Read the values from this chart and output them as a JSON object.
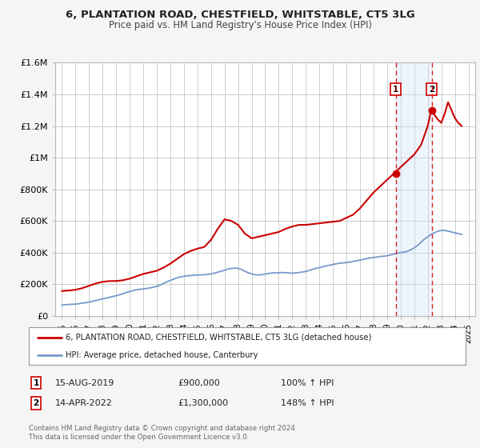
{
  "title": "6, PLANTATION ROAD, CHESTFIELD, WHITSTABLE, CT5 3LG",
  "subtitle": "Price paid vs. HM Land Registry's House Price Index (HPI)",
  "ylim": [
    0,
    1600000
  ],
  "xlim": [
    1994.5,
    2025.5
  ],
  "yticks": [
    0,
    200000,
    400000,
    600000,
    800000,
    1000000,
    1200000,
    1400000,
    1600000
  ],
  "ytick_labels": [
    "£0",
    "£200K",
    "£400K",
    "£600K",
    "£800K",
    "£1M",
    "£1.2M",
    "£1.4M",
    "£1.6M"
  ],
  "xticks": [
    1995,
    1996,
    1997,
    1998,
    1999,
    2000,
    2001,
    2002,
    2003,
    2004,
    2005,
    2006,
    2007,
    2008,
    2009,
    2010,
    2011,
    2012,
    2013,
    2014,
    2015,
    2016,
    2017,
    2018,
    2019,
    2020,
    2021,
    2022,
    2023,
    2024,
    2025
  ],
  "bg_color": "#f5f5f5",
  "plot_bg_color": "#ffffff",
  "grid_color": "#cccccc",
  "red_line_color": "#cc0000",
  "blue_line_color": "#7799cc",
  "shaded_region_color": "#cce0f5",
  "dashed_line_color": "#dd2222",
  "marker1_x": 2019.625,
  "marker1_y": 900000,
  "marker2_x": 2022.292,
  "marker2_y": 1300000,
  "vline1_x": 2019.625,
  "vline2_x": 2022.292,
  "legend_line1": "6, PLANTATION ROAD, CHESTFIELD, WHITSTABLE, CT5 3LG (detached house)",
  "legend_line2": "HPI: Average price, detached house, Canterbury",
  "annotation1_num": "1",
  "annotation1_date": "15-AUG-2019",
  "annotation1_price": "£900,000",
  "annotation1_hpi": "100% ↑ HPI",
  "annotation2_num": "2",
  "annotation2_date": "14-APR-2022",
  "annotation2_price": "£1,300,000",
  "annotation2_hpi": "148% ↑ HPI",
  "footer1": "Contains HM Land Registry data © Crown copyright and database right 2024.",
  "footer2": "This data is licensed under the Open Government Licence v3.0.",
  "hpi_x": [
    1995.0,
    1995.25,
    1995.5,
    1995.75,
    1996.0,
    1996.25,
    1996.5,
    1996.75,
    1997.0,
    1997.25,
    1997.5,
    1997.75,
    1998.0,
    1998.25,
    1998.5,
    1998.75,
    1999.0,
    1999.25,
    1999.5,
    1999.75,
    2000.0,
    2000.25,
    2000.5,
    2000.75,
    2001.0,
    2001.25,
    2001.5,
    2001.75,
    2002.0,
    2002.25,
    2002.5,
    2002.75,
    2003.0,
    2003.25,
    2003.5,
    2003.75,
    2004.0,
    2004.25,
    2004.5,
    2004.75,
    2005.0,
    2005.25,
    2005.5,
    2005.75,
    2006.0,
    2006.25,
    2006.5,
    2006.75,
    2007.0,
    2007.25,
    2007.5,
    2007.75,
    2008.0,
    2008.25,
    2008.5,
    2008.75,
    2009.0,
    2009.25,
    2009.5,
    2009.75,
    2010.0,
    2010.25,
    2010.5,
    2010.75,
    2011.0,
    2011.25,
    2011.5,
    2011.75,
    2012.0,
    2012.25,
    2012.5,
    2012.75,
    2013.0,
    2013.25,
    2013.5,
    2013.75,
    2014.0,
    2014.25,
    2014.5,
    2014.75,
    2015.0,
    2015.25,
    2015.5,
    2015.75,
    2016.0,
    2016.25,
    2016.5,
    2016.75,
    2017.0,
    2017.25,
    2017.5,
    2017.75,
    2018.0,
    2018.25,
    2018.5,
    2018.75,
    2019.0,
    2019.25,
    2019.5,
    2019.75,
    2020.0,
    2020.25,
    2020.5,
    2020.75,
    2021.0,
    2021.25,
    2021.5,
    2021.75,
    2022.0,
    2022.25,
    2022.5,
    2022.75,
    2023.0,
    2023.25,
    2023.5,
    2023.75,
    2024.0,
    2024.25,
    2024.5
  ],
  "hpi_y": [
    68000,
    70000,
    72000,
    73000,
    74000,
    77000,
    80000,
    83000,
    87000,
    92000,
    97000,
    102000,
    107000,
    112000,
    117000,
    122000,
    127000,
    133000,
    140000,
    147000,
    154000,
    160000,
    165000,
    168000,
    170000,
    173000,
    177000,
    181000,
    186000,
    195000,
    205000,
    215000,
    224000,
    232000,
    240000,
    246000,
    250000,
    253000,
    255000,
    257000,
    258000,
    259000,
    260000,
    262000,
    265000,
    270000,
    276000,
    282000,
    288000,
    295000,
    300000,
    302000,
    300000,
    293000,
    282000,
    272000,
    265000,
    260000,
    258000,
    260000,
    264000,
    268000,
    271000,
    272000,
    272000,
    274000,
    273000,
    271000,
    270000,
    271000,
    274000,
    277000,
    281000,
    287000,
    294000,
    300000,
    305000,
    310000,
    316000,
    320000,
    325000,
    329000,
    333000,
    335000,
    337000,
    340000,
    344000,
    348000,
    352000,
    357000,
    362000,
    366000,
    369000,
    372000,
    375000,
    377000,
    380000,
    385000,
    390000,
    395000,
    400000,
    403000,
    408000,
    418000,
    430000,
    445000,
    465000,
    485000,
    500000,
    515000,
    525000,
    535000,
    540000,
    540000,
    535000,
    530000,
    525000,
    520000,
    515000
  ],
  "property_x": [
    1995.0,
    1995.5,
    1996.0,
    1996.5,
    1997.0,
    1997.5,
    1998.0,
    1998.5,
    1999.0,
    1999.5,
    2000.0,
    2000.5,
    2001.0,
    2001.5,
    2002.0,
    2002.5,
    2003.0,
    2003.5,
    2004.0,
    2004.5,
    2005.0,
    2005.5,
    2006.0,
    2006.5,
    2007.0,
    2007.5,
    2008.0,
    2008.5,
    2009.0,
    2009.5,
    2010.0,
    2010.5,
    2011.0,
    2011.5,
    2012.0,
    2012.5,
    2013.0,
    2013.5,
    2014.0,
    2014.5,
    2015.0,
    2015.5,
    2016.0,
    2016.5,
    2017.0,
    2017.5,
    2018.0,
    2018.5,
    2019.0,
    2019.5,
    2020.0,
    2020.5,
    2021.0,
    2021.5,
    2022.0,
    2022.25,
    2022.5,
    2022.75,
    2023.0,
    2023.25,
    2023.5,
    2023.75,
    2024.0,
    2024.25,
    2024.5
  ],
  "property_y": [
    157000,
    160000,
    165000,
    175000,
    190000,
    205000,
    215000,
    220000,
    220000,
    225000,
    235000,
    250000,
    265000,
    275000,
    285000,
    305000,
    330000,
    360000,
    390000,
    410000,
    425000,
    435000,
    480000,
    550000,
    610000,
    600000,
    575000,
    520000,
    490000,
    500000,
    510000,
    520000,
    530000,
    550000,
    565000,
    575000,
    575000,
    580000,
    585000,
    590000,
    595000,
    600000,
    620000,
    640000,
    680000,
    730000,
    780000,
    820000,
    860000,
    900000,
    940000,
    980000,
    1020000,
    1080000,
    1200000,
    1300000,
    1270000,
    1240000,
    1220000,
    1280000,
    1350000,
    1300000,
    1250000,
    1220000,
    1200000
  ]
}
